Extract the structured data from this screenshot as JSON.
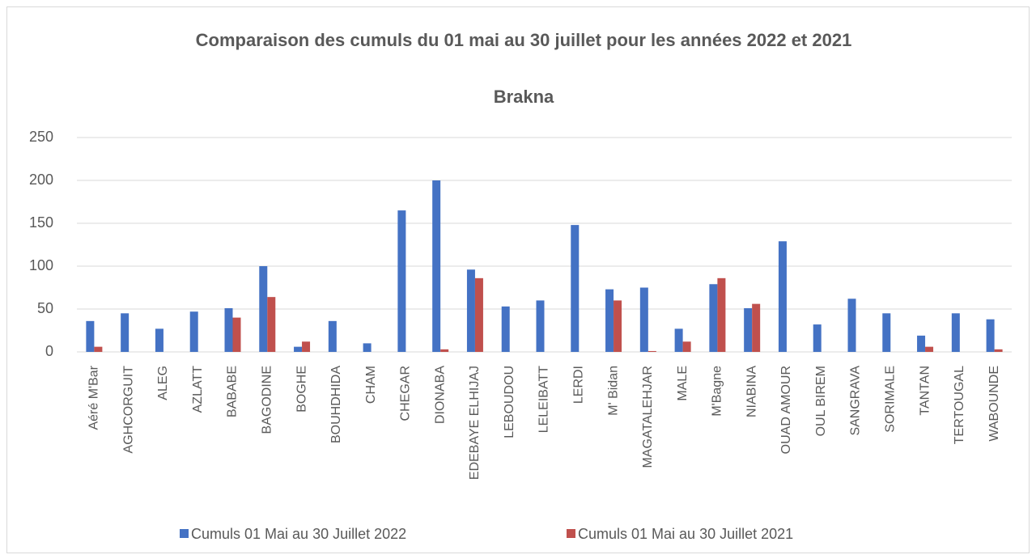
{
  "chart_data": {
    "type": "bar",
    "title": "Comparaison des cumuls du 01 mai au 30 juillet pour les années 2022 et 2021",
    "subtitle": "Brakna",
    "categories": [
      "Aéré M'Bar",
      "AGHCORGUIT",
      "ALEG",
      "AZLATT",
      "BABABE",
      "BAGODINE",
      "BOGHE",
      "BOUHDHIDA",
      "CHAM",
      "CHEGAR",
      "DIONABA",
      "EDEBAYE ELHIJAJ",
      "LEBOUDOU",
      "LELEIBATT",
      "LERDI",
      "M' Bidan",
      "MAGATALEHJAR",
      "MALE",
      "M'Bagne",
      "NIABINA",
      "OUAD AMOUR",
      "OUL BIREM",
      "SANGRAVA",
      "SORIMALE",
      "TANTAN",
      "TERTOUGAL",
      "WABOUNDE"
    ],
    "series": [
      {
        "name": "Cumuls 01 Mai au 30 Juillet 2022",
        "color": "#4472c4",
        "values": [
          36,
          45,
          27,
          47,
          51,
          100,
          6,
          36,
          10,
          165,
          200,
          96,
          53,
          60,
          148,
          73,
          75,
          27,
          79,
          51,
          129,
          32,
          62,
          45,
          19,
          45,
          38
        ]
      },
      {
        "name": "Cumuls 01 Mai au 30 Juillet 2021",
        "color": "#c0504d",
        "values": [
          6,
          0,
          0,
          0,
          40,
          64,
          12,
          0,
          0,
          0,
          3,
          86,
          0,
          0,
          0,
          60,
          1,
          12,
          86,
          56,
          0,
          0,
          0,
          0,
          6,
          0,
          3
        ]
      }
    ],
    "ylim": [
      0,
      250
    ],
    "yticks": [
      0,
      50,
      100,
      150,
      200,
      250
    ],
    "grid": true,
    "legend": "bottom"
  }
}
